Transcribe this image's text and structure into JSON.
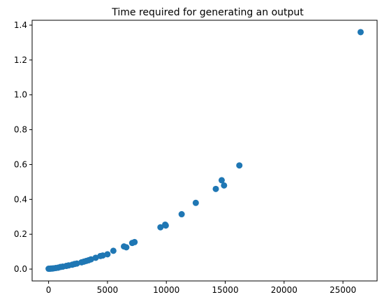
{
  "chart_data": {
    "type": "scatter",
    "title": "Time required for generating an output",
    "xlabel": "",
    "ylabel": "",
    "xlim": [
      -1400,
      27900
    ],
    "ylim": [
      -0.068,
      1.428
    ],
    "xticks": [
      0,
      5000,
      10000,
      15000,
      20000,
      25000
    ],
    "xtick_labels": [
      "0",
      "5000",
      "10000",
      "15000",
      "20000",
      "25000"
    ],
    "yticks": [
      0.0,
      0.2,
      0.4,
      0.6,
      0.8,
      1.0,
      1.2,
      1.4
    ],
    "ytick_labels": [
      "0.0",
      "0.2",
      "0.4",
      "0.6",
      "0.8",
      "1.0",
      "1.2",
      "1.4"
    ],
    "grid": false,
    "legend": "none",
    "marker_color": "#1f77b4",
    "series": [
      {
        "points": [
          [
            0,
            0.002
          ],
          [
            100,
            0.002
          ],
          [
            200,
            0.003
          ],
          [
            300,
            0.003
          ],
          [
            400,
            0.004
          ],
          [
            600,
            0.006
          ],
          [
            800,
            0.008
          ],
          [
            1000,
            0.012
          ],
          [
            1200,
            0.014
          ],
          [
            1500,
            0.018
          ],
          [
            1700,
            0.021
          ],
          [
            2000,
            0.025
          ],
          [
            2200,
            0.029
          ],
          [
            2400,
            0.032
          ],
          [
            2800,
            0.039
          ],
          [
            3000,
            0.043
          ],
          [
            3200,
            0.047
          ],
          [
            3400,
            0.051
          ],
          [
            3600,
            0.056
          ],
          [
            4000,
            0.065
          ],
          [
            4400,
            0.075
          ],
          [
            4600,
            0.078
          ],
          [
            5000,
            0.085
          ],
          [
            5500,
            0.105
          ],
          [
            6400,
            0.13
          ],
          [
            6600,
            0.125
          ],
          [
            7100,
            0.15
          ],
          [
            7300,
            0.155
          ],
          [
            9500,
            0.24
          ],
          [
            9900,
            0.255
          ],
          [
            9950,
            0.25
          ],
          [
            11300,
            0.315
          ],
          [
            12500,
            0.38
          ],
          [
            14200,
            0.46
          ],
          [
            14700,
            0.51
          ],
          [
            14900,
            0.48
          ],
          [
            16200,
            0.595
          ],
          [
            26500,
            1.36
          ]
        ]
      }
    ]
  }
}
